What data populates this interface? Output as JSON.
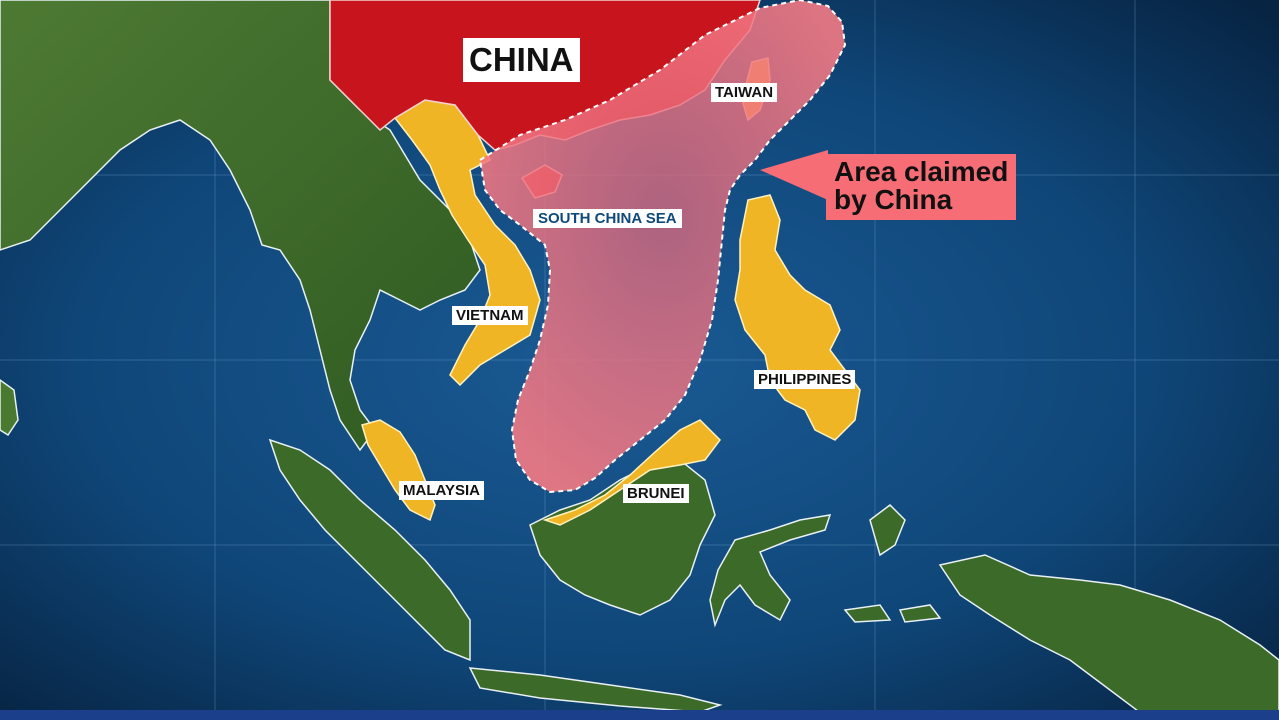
{
  "map": {
    "labels": {
      "china": "CHINA",
      "taiwan": "TAIWAN",
      "vietnam": "VIETNAM",
      "philippines": "PHILIPPINES",
      "malaysia": "MALAYSIA",
      "brunei": "BRUNEI",
      "south_china_sea": "SOUTH CHINA SEA"
    },
    "callout": {
      "line1": "Area claimed",
      "line2": "by China"
    },
    "colors": {
      "ocean": "#0d3a66",
      "land": "#3f6a2c",
      "china": "#c8141c",
      "claimant_countries": "#f0b524",
      "claimed_area": "#f3707b",
      "callout_box": "#f76d76",
      "bottom_bar": "#1b3f8a"
    }
  }
}
